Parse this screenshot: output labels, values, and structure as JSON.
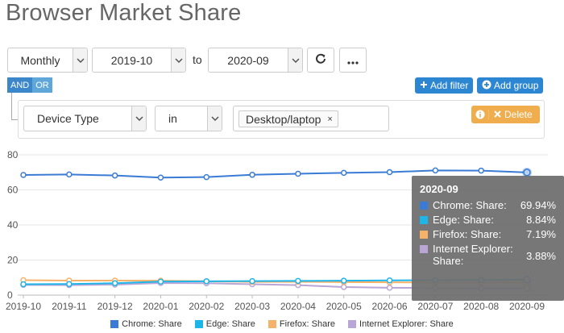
{
  "page": {
    "title": "Browser Market Share"
  },
  "controls": {
    "period": "Monthly",
    "from": "2019-10",
    "to_label": "to",
    "to": "2020-09",
    "refresh_icon": "refresh-icon",
    "more_icon": "ellipsis-icon"
  },
  "logic": {
    "and": "AND",
    "or": "OR"
  },
  "buttons": {
    "add_filter": "Add filter",
    "add_group": "Add group",
    "delete": "Delete"
  },
  "filter": {
    "field": "Device Type",
    "operator": "in",
    "value_tag": "Desktop/laptop",
    "remove_glyph": "×"
  },
  "colors": {
    "chrome": "#3a7bd5",
    "edge": "#1eb5e8",
    "firefox": "#f7b269",
    "ie": "#b9a5d6",
    "accent": "#2d86d1",
    "warning": "#f0ad4e"
  },
  "chart_data": {
    "type": "line",
    "categories": [
      "2019-10",
      "2019-11",
      "2019-12",
      "2020-01",
      "2020-02",
      "2020-03",
      "2020-04",
      "2020-05",
      "2020-06",
      "2020-07",
      "2020-08",
      "2020-09"
    ],
    "ylim": [
      0,
      80
    ],
    "yticks": [
      "0",
      "20",
      "40",
      "60",
      "80"
    ],
    "series": [
      {
        "name": "Chrome: Share",
        "values": [
          68.5,
          68.8,
          68.2,
          67.0,
          67.3,
          68.6,
          69.2,
          69.7,
          70.1,
          71.1,
          71.0,
          69.94
        ]
      },
      {
        "name": "Edge: Share",
        "values": [
          6.2,
          6.3,
          6.8,
          7.7,
          7.9,
          8.0,
          8.1,
          8.2,
          8.4,
          8.5,
          8.6,
          8.84
        ]
      },
      {
        "name": "Firefox: Share",
        "values": [
          8.5,
          8.3,
          8.3,
          8.2,
          7.9,
          7.5,
          7.6,
          7.4,
          7.3,
          7.2,
          7.2,
          7.19
        ]
      },
      {
        "name": "Internet Explorer: Share",
        "values": [
          5.8,
          5.7,
          6.0,
          6.9,
          6.8,
          6.2,
          5.7,
          4.6,
          4.2,
          4.0,
          3.9,
          3.88
        ]
      }
    ],
    "grid": true,
    "legend": "bottom-center"
  },
  "tooltip": {
    "header": "2020-09",
    "rows": [
      {
        "name": "Chrome: Share:",
        "value": "69.94%"
      },
      {
        "name": "Edge: Share:",
        "value": "8.84%"
      },
      {
        "name": "Firefox: Share:",
        "value": "7.19%"
      },
      {
        "name": "Internet Explorer: Share:",
        "value": "3.88%"
      }
    ]
  }
}
